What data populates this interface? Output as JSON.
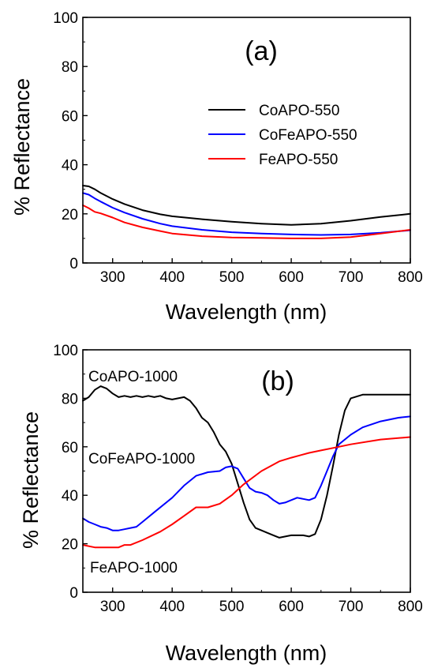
{
  "chart_data": [
    {
      "panel": "(a)",
      "type": "line",
      "xlabel": "Wavelength (nm)",
      "ylabel": "% Reflectance",
      "xlim": [
        250,
        800
      ],
      "ylim": [
        0,
        100
      ],
      "xticks": [
        300,
        400,
        500,
        600,
        700,
        800
      ],
      "yticks": [
        0,
        20,
        40,
        60,
        80,
        100
      ],
      "legend_position": "center-right",
      "series": [
        {
          "name": "CoAPO-550",
          "color": "#000000",
          "x": [
            250,
            260,
            270,
            280,
            300,
            320,
            350,
            380,
            400,
            450,
            500,
            550,
            600,
            650,
            700,
            750,
            800
          ],
          "y": [
            31.5,
            31.2,
            30,
            28.5,
            26,
            24,
            21.5,
            19.8,
            19,
            17.8,
            16.8,
            16,
            15.5,
            16,
            17.2,
            18.7,
            20
          ]
        },
        {
          "name": "CoFeAPO-550",
          "color": "#0000ff",
          "x": [
            250,
            260,
            270,
            280,
            300,
            320,
            350,
            380,
            400,
            450,
            500,
            550,
            600,
            650,
            700,
            750,
            800
          ],
          "y": [
            28.5,
            27.8,
            26.3,
            25,
            22.5,
            20.5,
            18,
            16,
            15,
            13.5,
            12.5,
            12,
            11.6,
            11.4,
            11.6,
            12.3,
            13.3
          ]
        },
        {
          "name": "FeAPO-550",
          "color": "#ff0000",
          "x": [
            250,
            260,
            270,
            280,
            300,
            320,
            350,
            380,
            400,
            450,
            500,
            550,
            600,
            650,
            700,
            750,
            800
          ],
          "y": [
            23.5,
            22.3,
            20.8,
            20.2,
            18.5,
            16.5,
            14.5,
            13,
            12,
            10.9,
            10.4,
            10.2,
            10,
            10,
            10.5,
            12,
            13.5
          ]
        }
      ]
    },
    {
      "panel": "(b)",
      "type": "line",
      "xlabel": "Wavelength (nm)",
      "ylabel": "% Reflectance",
      "xlim": [
        250,
        800
      ],
      "ylim": [
        0,
        100
      ],
      "xticks": [
        300,
        400,
        500,
        600,
        700,
        800
      ],
      "yticks": [
        0,
        20,
        40,
        60,
        80,
        100
      ],
      "series": [
        {
          "name": "CoAPO-1000",
          "color": "#000000",
          "x": [
            250,
            260,
            270,
            280,
            290,
            300,
            310,
            320,
            330,
            340,
            350,
            360,
            370,
            380,
            390,
            400,
            410,
            420,
            430,
            440,
            450,
            460,
            470,
            480,
            490,
            500,
            510,
            520,
            530,
            540,
            550,
            560,
            570,
            580,
            590,
            600,
            610,
            620,
            630,
            640,
            650,
            660,
            670,
            680,
            690,
            700,
            720,
            740,
            760,
            780,
            800
          ],
          "y": [
            79,
            80.5,
            83.5,
            85,
            84,
            82,
            80.5,
            81,
            80.5,
            81,
            80.5,
            81,
            80.5,
            81,
            80,
            79.5,
            80,
            80.5,
            79,
            76,
            72,
            70,
            66,
            61,
            58,
            53,
            45,
            37,
            30,
            26.5,
            25.5,
            24.5,
            23.5,
            22.5,
            23,
            23.5,
            23.5,
            23.5,
            23,
            24,
            30,
            40,
            52,
            65,
            75,
            80,
            81.5,
            81.5,
            81.5,
            81.5,
            81.5
          ]
        },
        {
          "name": "CoFeAPO-1000",
          "color": "#0000ff",
          "x": [
            250,
            260,
            270,
            280,
            290,
            300,
            310,
            320,
            330,
            340,
            350,
            370,
            400,
            420,
            440,
            460,
            480,
            490,
            500,
            510,
            520,
            530,
            540,
            550,
            560,
            570,
            580,
            590,
            600,
            610,
            620,
            630,
            640,
            650,
            660,
            670,
            680,
            700,
            720,
            750,
            780,
            800
          ],
          "y": [
            30.5,
            29,
            28,
            27,
            26.5,
            25.5,
            25.5,
            26,
            26.5,
            27,
            29,
            33,
            39,
            44,
            48,
            49.5,
            50,
            51.5,
            52,
            51,
            47,
            43,
            41.5,
            41,
            40,
            38,
            36.5,
            37,
            38,
            39,
            38.5,
            38,
            39,
            44,
            50,
            56,
            61,
            65,
            68,
            70.5,
            72,
            72.5
          ]
        },
        {
          "name": "FeAPO-1000",
          "color": "#ff0000",
          "x": [
            250,
            270,
            290,
            310,
            320,
            330,
            350,
            380,
            400,
            420,
            440,
            460,
            480,
            500,
            520,
            550,
            580,
            600,
            630,
            650,
            680,
            700,
            750,
            800
          ],
          "y": [
            19.5,
            18.5,
            18.5,
            18.5,
            19.5,
            19.5,
            21.5,
            25,
            28,
            31.5,
            35,
            35,
            36.5,
            40,
            44.5,
            50,
            54,
            55.5,
            57.5,
            58.5,
            60,
            61,
            63,
            64
          ]
        }
      ]
    }
  ]
}
